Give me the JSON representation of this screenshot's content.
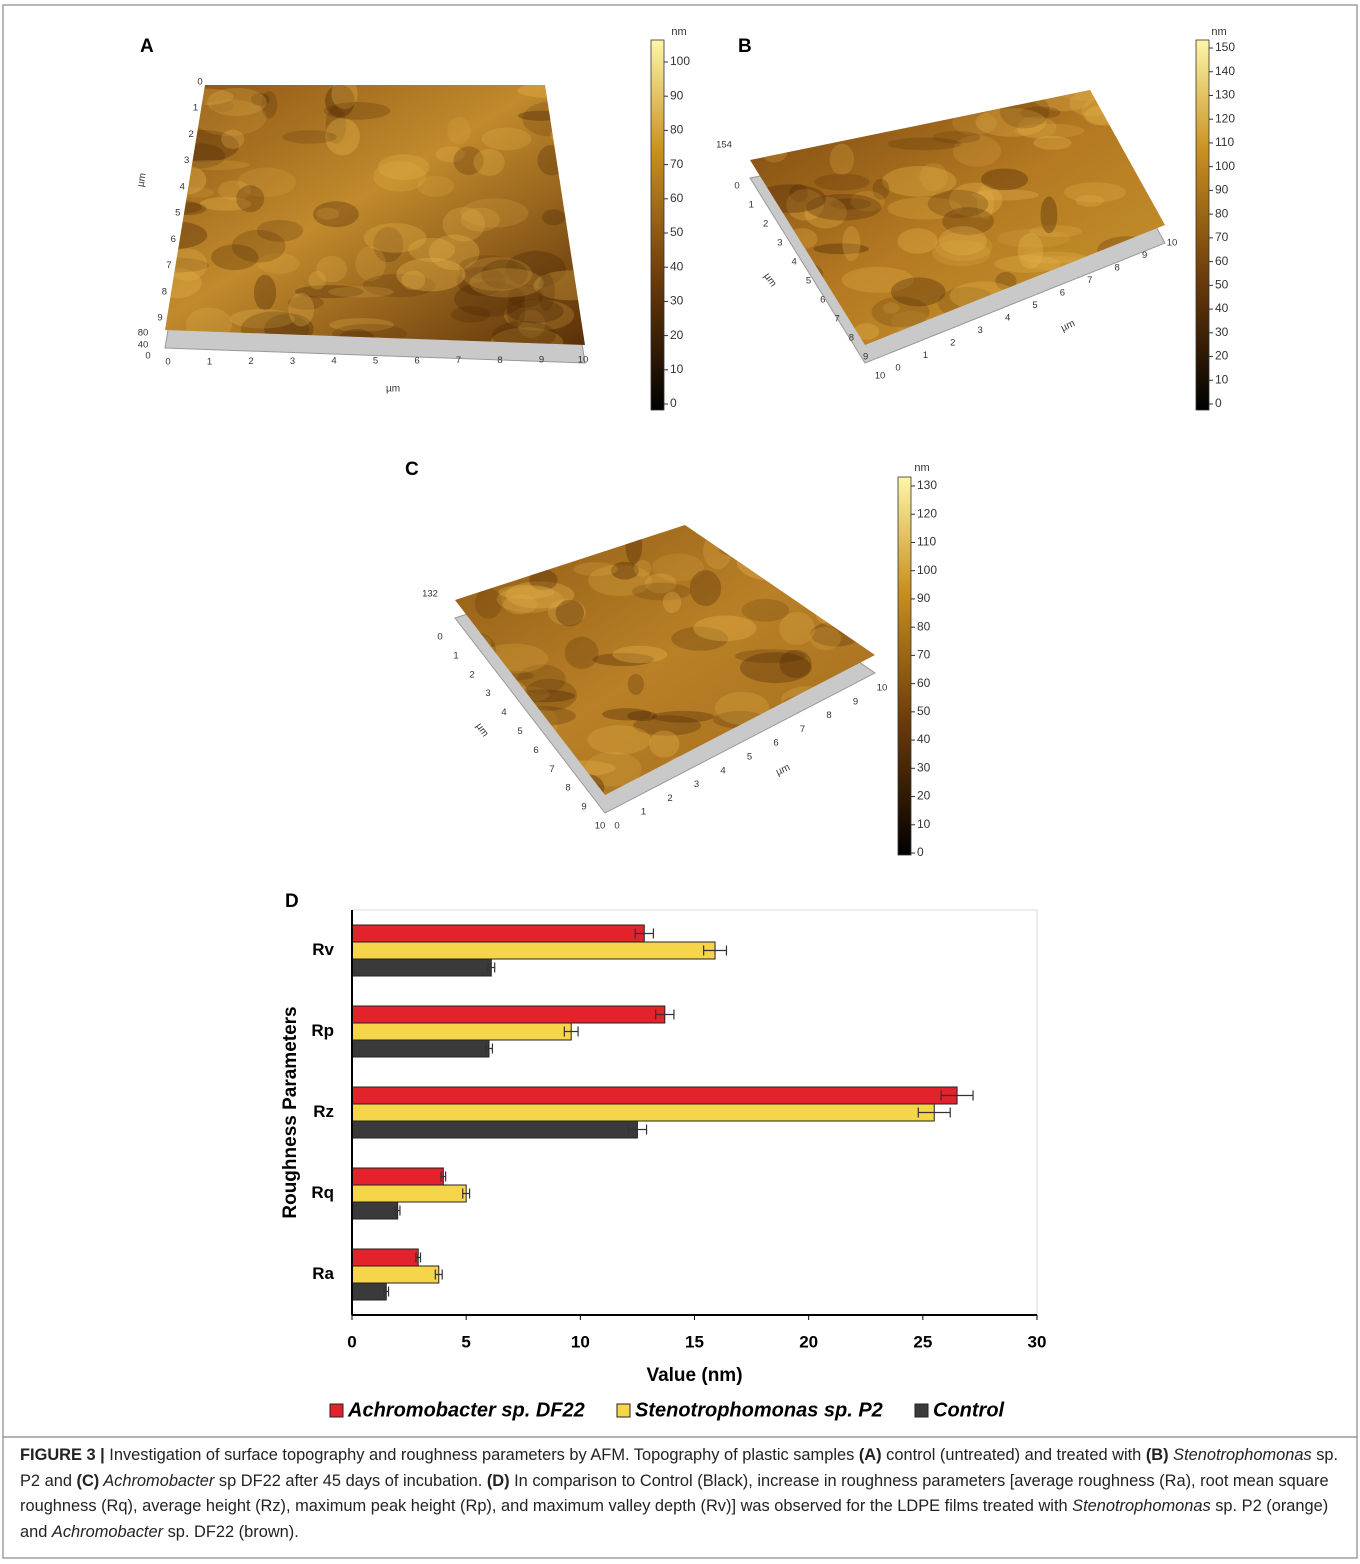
{
  "panels": [
    {
      "label": "A",
      "colorbar": {
        "unit": "nm",
        "ticks": [
          0,
          10,
          20,
          30,
          40,
          50,
          60,
          70,
          80,
          90,
          100
        ]
      },
      "axes": {
        "x_label": "µm",
        "x_ticks": [
          0,
          1,
          2,
          3,
          4,
          5,
          6,
          7,
          8,
          9,
          10
        ],
        "y_label": "µm",
        "y_ticks": [
          0,
          1,
          2,
          3,
          4,
          5,
          6,
          7,
          8,
          9
        ],
        "z_ticks": [
          80,
          40,
          0
        ]
      }
    },
    {
      "label": "B",
      "colorbar": {
        "unit": "nm",
        "ticks": [
          0,
          10,
          20,
          30,
          40,
          50,
          60,
          70,
          80,
          90,
          100,
          110,
          120,
          130,
          140,
          150
        ]
      },
      "axes": {
        "x_label": "µm",
        "x_ticks": [
          0,
          1,
          2,
          3,
          4,
          5,
          6,
          7,
          8,
          9,
          10
        ],
        "y_label": "µm",
        "y_ticks": [
          0,
          1,
          2,
          3,
          4,
          5,
          6,
          7,
          8,
          9,
          10
        ],
        "z_ticks": [
          154
        ]
      }
    },
    {
      "label": "C",
      "colorbar": {
        "unit": "nm",
        "ticks": [
          0,
          10,
          20,
          30,
          40,
          50,
          60,
          70,
          80,
          90,
          100,
          110,
          120,
          130
        ]
      },
      "axes": {
        "x_label": "µm",
        "x_ticks": [
          0,
          1,
          2,
          3,
          4,
          5,
          6,
          7,
          8,
          9,
          10
        ],
        "y_label": "µm",
        "y_ticks": [
          0,
          1,
          2,
          3,
          4,
          5,
          6,
          7,
          8,
          9,
          10
        ],
        "z_ticks": [
          132
        ]
      }
    }
  ],
  "chart_data": {
    "type": "hbar",
    "panel_label": "D",
    "x_label": "Value (nm)",
    "y_label": "Roughness Parameters",
    "categories": [
      "Ra",
      "Rq",
      "Rz",
      "Rp",
      "Rv"
    ],
    "series": [
      {
        "name": "Achromobacter sp. DF22",
        "color": "#e3222b",
        "values": [
          2.9,
          4.0,
          26.5,
          13.7,
          12.8
        ],
        "errors": [
          0.1,
          0.1,
          0.7,
          0.4,
          0.4
        ]
      },
      {
        "name": "Stenotrophomonas sp. P2",
        "color": "#f7d54a",
        "values": [
          3.8,
          5.0,
          25.5,
          9.6,
          15.9
        ],
        "errors": [
          0.15,
          0.15,
          0.7,
          0.3,
          0.5
        ]
      },
      {
        "name": "Control",
        "color": "#3a3a3a",
        "values": [
          1.5,
          2.0,
          12.5,
          6.0,
          6.1
        ],
        "errors": [
          0.1,
          0.1,
          0.4,
          0.15,
          0.15
        ]
      }
    ],
    "xlim": [
      0,
      30
    ],
    "xticks": [
      0,
      5,
      10,
      15,
      20,
      25,
      30
    ]
  },
  "caption": [
    {
      "text": "FIGURE 3 |",
      "style": "bold"
    },
    {
      "text": " Investigation of surface topography and roughness parameters by AFM. Topography of plastic samples ",
      "style": "normal"
    },
    {
      "text": "(A)",
      "style": "bold"
    },
    {
      "text": " control (untreated) and treated with ",
      "style": "normal"
    },
    {
      "text": "(B)",
      "style": "bold"
    },
    {
      "text": " Stenotrophomonas",
      "style": "italic"
    },
    {
      "text": " sp. P2 and ",
      "style": "normal"
    },
    {
      "text": "(C)",
      "style": "bold"
    },
    {
      "text": " Achromobacter",
      "style": "italic"
    },
    {
      "text": " sp DF22 after 45 days of incubation. ",
      "style": "normal"
    },
    {
      "text": "(D)",
      "style": "bold"
    },
    {
      "text": " In comparison to Control (Black), increase in roughness parameters [average roughness (Ra), root mean square roughness (Rq), average height (Rz), maximum peak height (Rp), and maximum valley depth (Rv)] was observed for the LDPE films treated with ",
      "style": "normal"
    },
    {
      "text": "Stenotrophomonas",
      "style": "italic"
    },
    {
      "text": " sp. P2 (orange) and ",
      "style": "normal"
    },
    {
      "text": "Achromobacter",
      "style": "italic"
    },
    {
      "text": " sp. DF22 (brown).",
      "style": "normal"
    }
  ]
}
